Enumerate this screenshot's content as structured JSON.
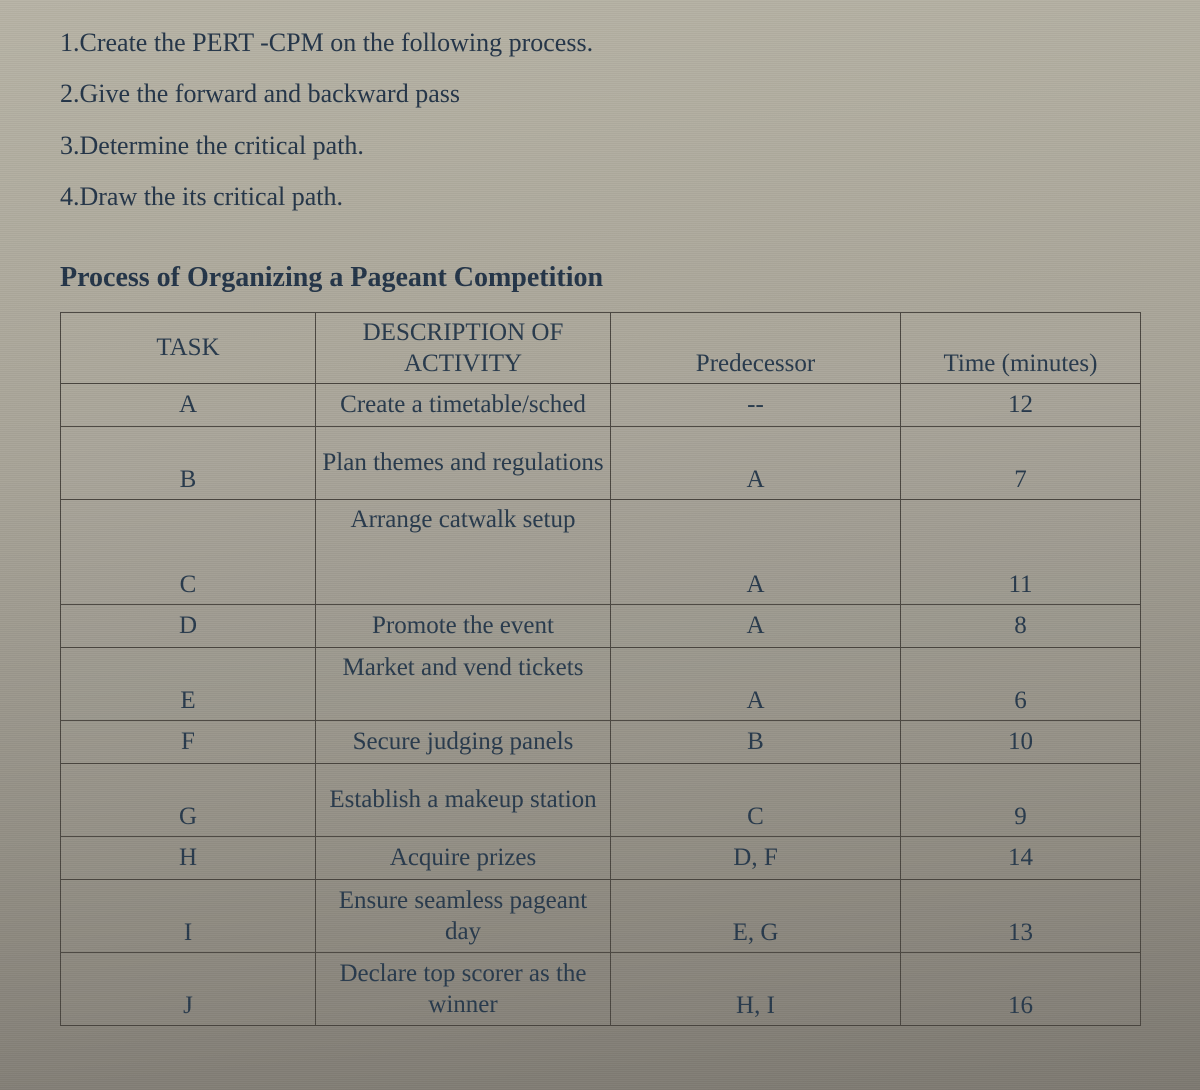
{
  "instructions": [
    "1.Create the PERT -CPM on the following process.",
    "2.Give the forward and backward pass",
    "3.Determine the critical path.",
    "4.Draw the its critical path."
  ],
  "section_title": "Process of Organizing a Pageant Competition",
  "table": {
    "headers": {
      "task": "TASK",
      "desc": "DESCRIPTION OF ACTIVITY",
      "pred": "Predecessor",
      "time": "Time (minutes)"
    },
    "rows": [
      {
        "task": "A",
        "desc": "Create a timetable/sched",
        "pred": "--",
        "time": "12",
        "h": "short"
      },
      {
        "task": "B",
        "desc": "Plan themes and regulations",
        "pred": "A",
        "time": "7",
        "h": "med"
      },
      {
        "task": "C",
        "desc": "Arrange catwalk setup",
        "pred": "A",
        "time": "11",
        "h": "tall",
        "desc_valign": "top"
      },
      {
        "task": "D",
        "desc": "Promote the event",
        "pred": "A",
        "time": "8",
        "h": "short"
      },
      {
        "task": "E",
        "desc": "Market and vend tickets",
        "pred": "A",
        "time": "6",
        "h": "med",
        "desc_valign": "top"
      },
      {
        "task": "F",
        "desc": "Secure judging panels",
        "pred": "B",
        "time": "10",
        "h": "short"
      },
      {
        "task": "G",
        "desc": "Establish a makeup station",
        "pred": "C",
        "time": "9",
        "h": "med"
      },
      {
        "task": "H",
        "desc": "Acquire prizes",
        "pred": "D, F",
        "time": "14",
        "h": "short"
      },
      {
        "task": "I",
        "desc": "Ensure seamless pageant day",
        "pred": "E, G",
        "time": "13",
        "h": "med"
      },
      {
        "task": "J",
        "desc": "Declare top scorer as the winner",
        "pred": "H, I",
        "time": "16",
        "h": "med"
      }
    ]
  }
}
